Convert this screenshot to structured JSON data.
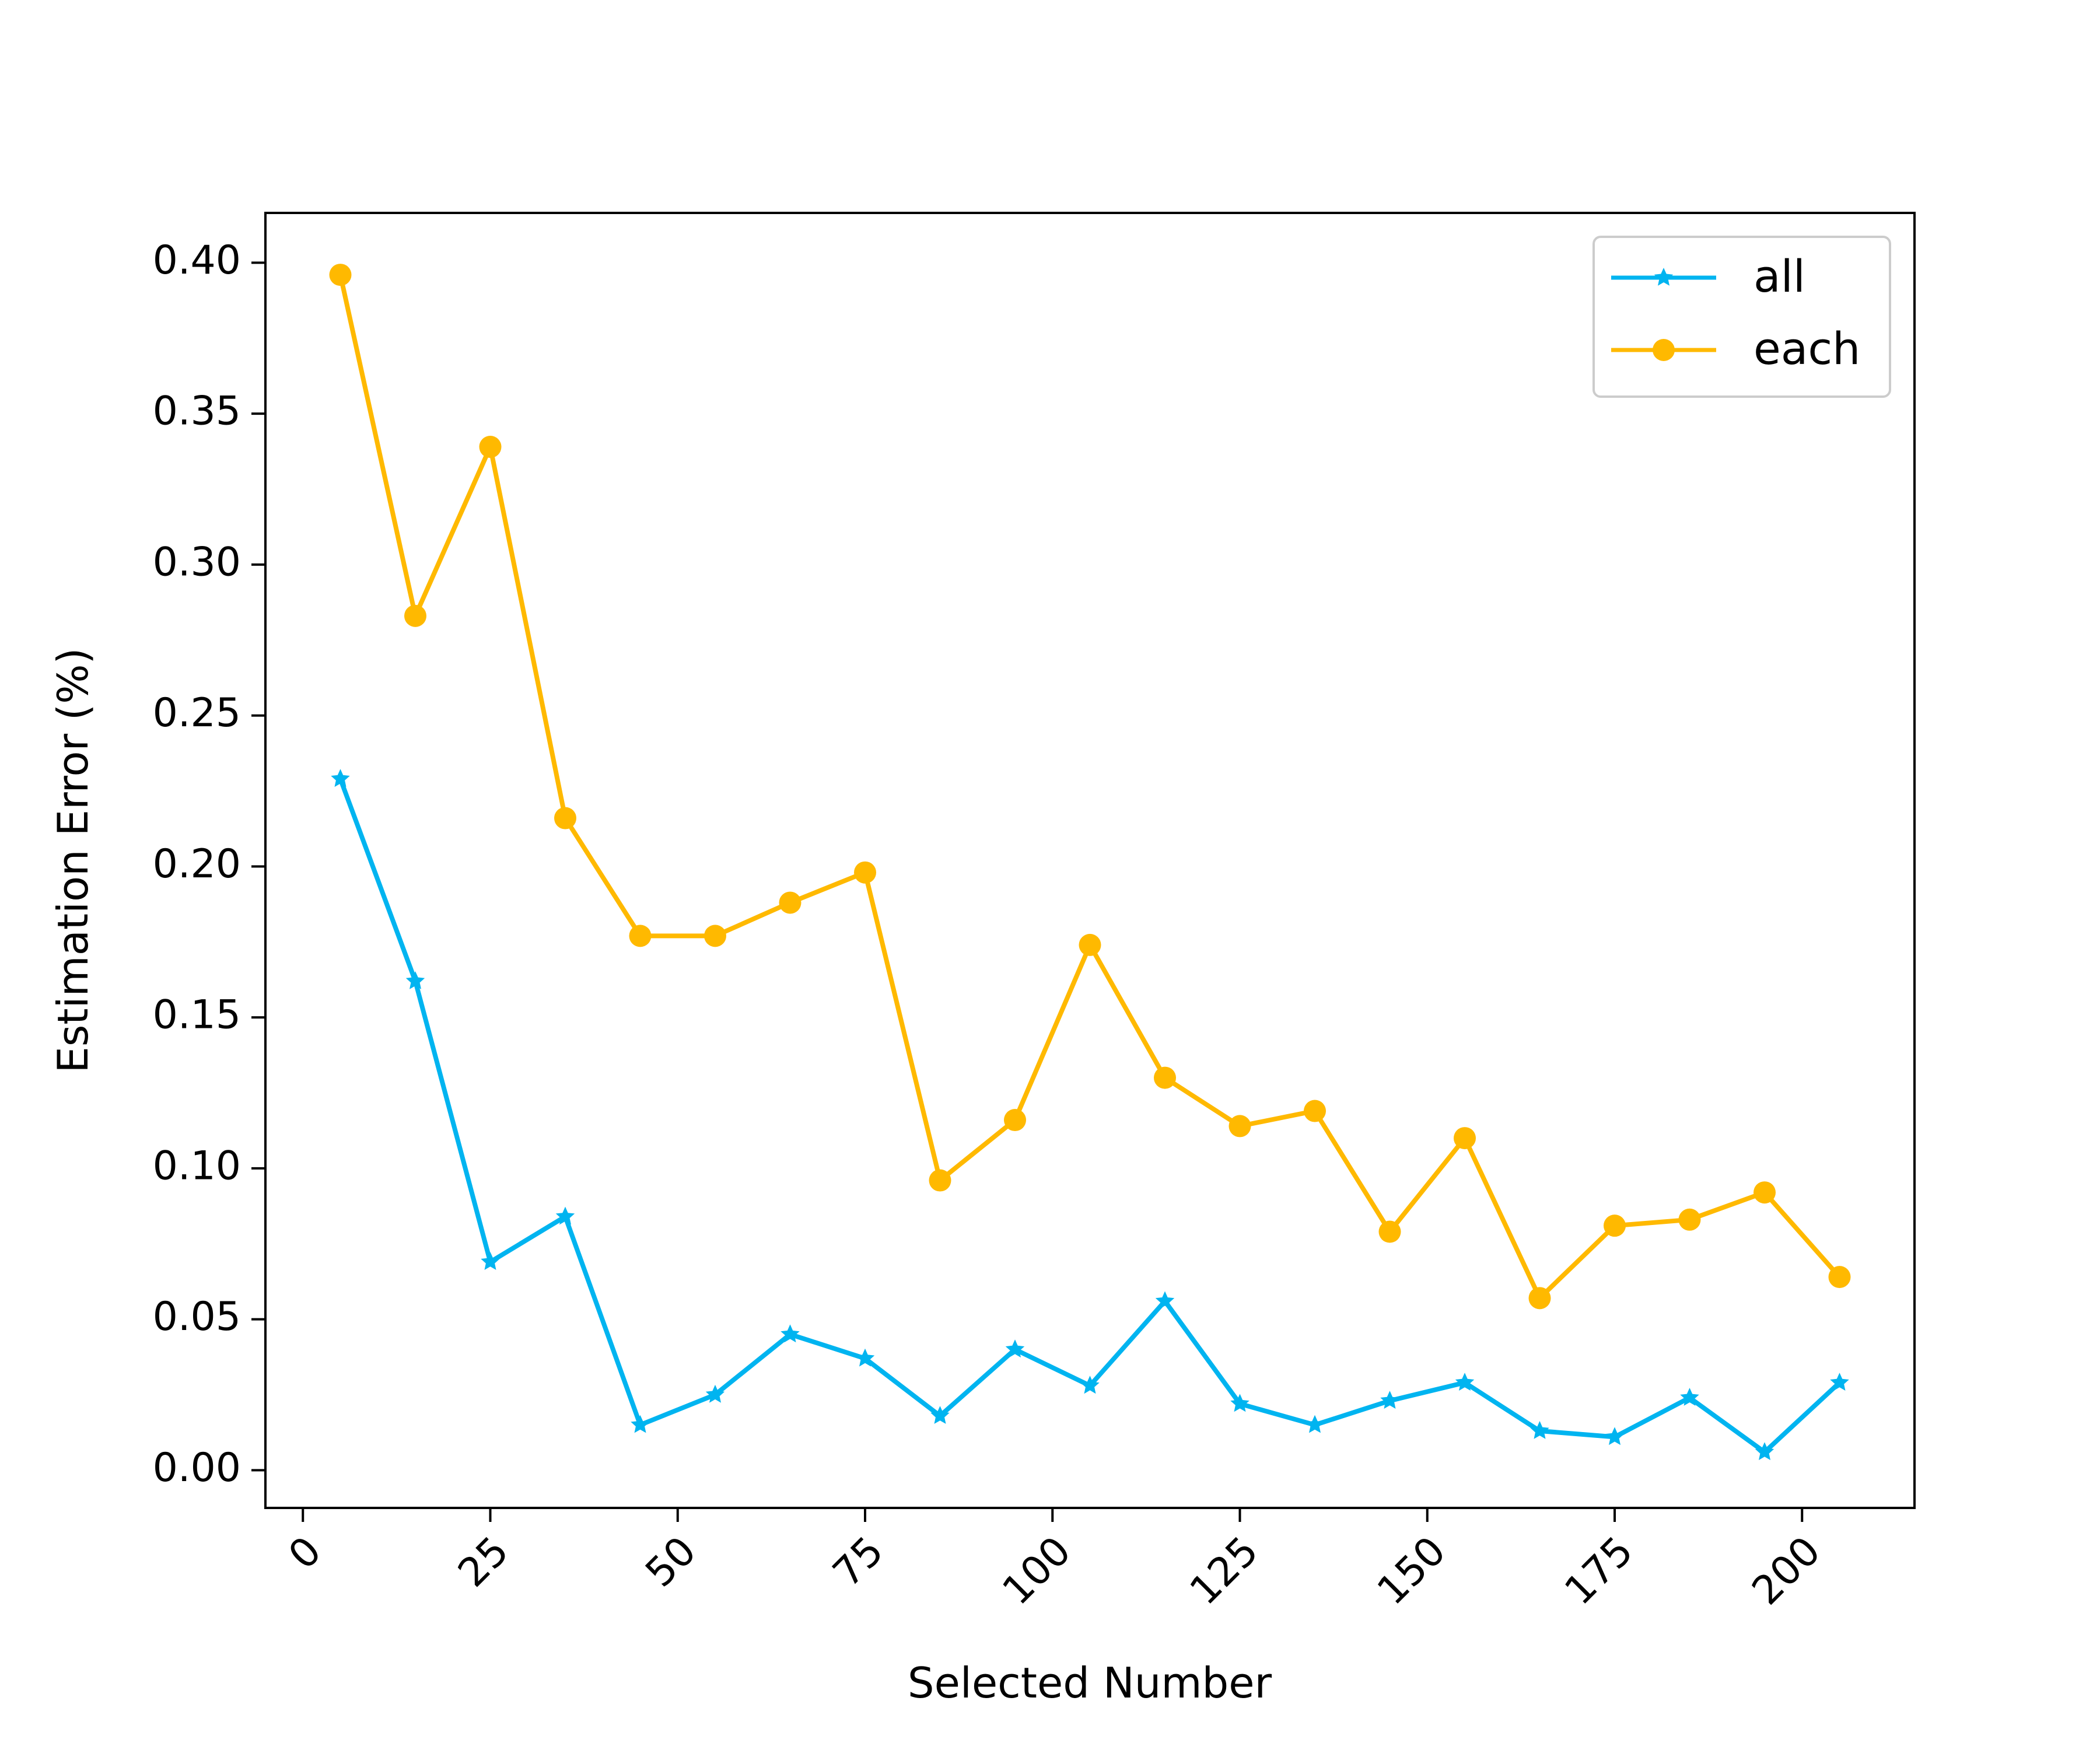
{
  "chart_data": {
    "type": "line",
    "title": "",
    "xlabel": "Selected Number",
    "ylabel": "Estimation Error (%)",
    "xlim": [
      -5,
      215
    ],
    "ylim": [
      -0.0125,
      0.4165
    ],
    "x_ticks": [
      0,
      25,
      50,
      75,
      100,
      125,
      150,
      175,
      200
    ],
    "x_tick_labels": [
      "0",
      "25",
      "50",
      "75",
      "100",
      "125",
      "150",
      "175",
      "200"
    ],
    "y_ticks": [
      0.0,
      0.05,
      0.1,
      0.15,
      0.2,
      0.25,
      0.3,
      0.35,
      0.4
    ],
    "y_tick_labels": [
      "0.00",
      "0.05",
      "0.10",
      "0.15",
      "0.20",
      "0.25",
      "0.30",
      "0.35",
      "0.40"
    ],
    "x_tick_rotation": 45,
    "grid": false,
    "legend_position": "top-right",
    "x": [
      5,
      15,
      25,
      35,
      45,
      55,
      65,
      75,
      85,
      95,
      105,
      115,
      125,
      135,
      145,
      155,
      165,
      175,
      185,
      195,
      205
    ],
    "series": [
      {
        "name": "all",
        "color": "#00b4f0",
        "marker": "star",
        "values": [
          0.229,
          0.162,
          0.069,
          0.084,
          0.015,
          0.025,
          0.045,
          0.037,
          0.018,
          0.04,
          0.028,
          0.056,
          0.022,
          0.015,
          0.023,
          0.029,
          0.013,
          0.011,
          0.024,
          0.006,
          0.029
        ]
      },
      {
        "name": "each",
        "color": "#ffb900",
        "marker": "circle",
        "values": [
          0.396,
          0.283,
          0.339,
          0.216,
          0.177,
          0.177,
          0.188,
          0.198,
          0.096,
          0.116,
          0.174,
          0.13,
          0.114,
          0.119,
          0.079,
          0.11,
          0.057,
          0.081,
          0.083,
          0.092,
          0.064
        ]
      }
    ]
  }
}
